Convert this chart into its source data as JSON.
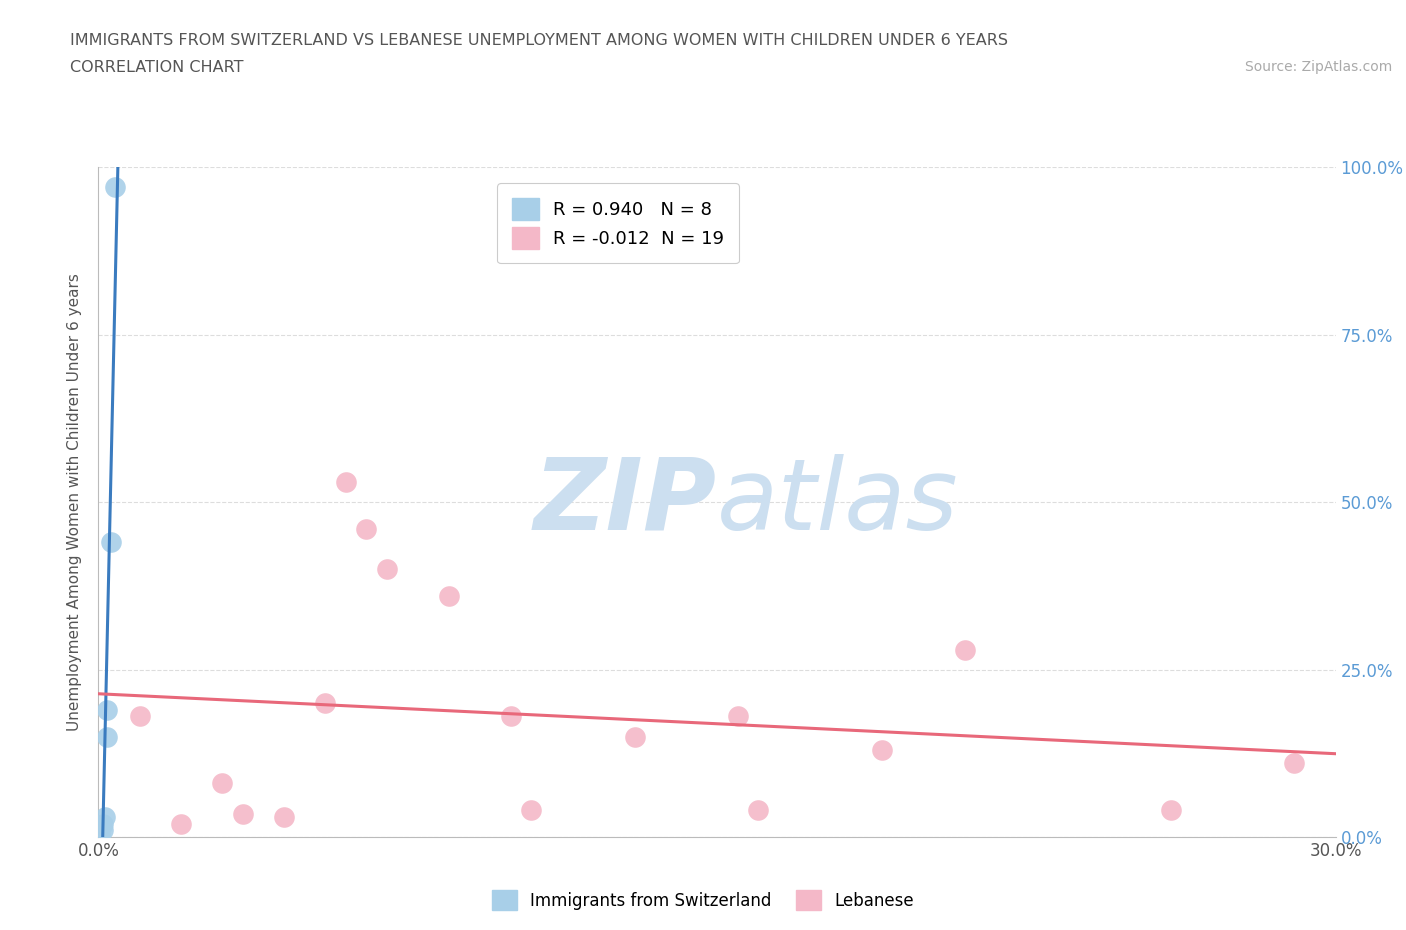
{
  "title_line1": "IMMIGRANTS FROM SWITZERLAND VS LEBANESE UNEMPLOYMENT AMONG WOMEN WITH CHILDREN UNDER 6 YEARS",
  "title_line2": "CORRELATION CHART",
  "source_text": "Source: ZipAtlas.com",
  "ylabel": "Unemployment Among Women with Children Under 6 years",
  "xlim": [
    0,
    0.3
  ],
  "ylim": [
    0,
    1.0
  ],
  "xtick_labels": [
    "0.0%",
    "",
    "",
    "",
    "",
    "",
    "30.0%"
  ],
  "xtick_vals": [
    0.0,
    0.05,
    0.1,
    0.15,
    0.2,
    0.25,
    0.3
  ],
  "ytick_labels": [
    "0.0%",
    "25.0%",
    "50.0%",
    "75.0%",
    "100.0%"
  ],
  "ytick_vals": [
    0.0,
    0.25,
    0.5,
    0.75,
    1.0
  ],
  "swiss_x": [
    0.0005,
    0.001,
    0.001,
    0.0015,
    0.002,
    0.002,
    0.003,
    0.004
  ],
  "swiss_y": [
    0.005,
    0.01,
    0.02,
    0.03,
    0.15,
    0.19,
    0.44,
    0.97
  ],
  "lebanese_x": [
    0.01,
    0.02,
    0.03,
    0.035,
    0.045,
    0.055,
    0.06,
    0.065,
    0.07,
    0.085,
    0.1,
    0.105,
    0.13,
    0.155,
    0.16,
    0.19,
    0.21,
    0.26,
    0.29
  ],
  "lebanese_y": [
    0.18,
    0.02,
    0.08,
    0.035,
    0.03,
    0.2,
    0.53,
    0.46,
    0.4,
    0.36,
    0.18,
    0.04,
    0.15,
    0.18,
    0.04,
    0.13,
    0.28,
    0.04,
    0.11
  ],
  "swiss_color": "#a8cfe8",
  "lebanese_color": "#f4b8c8",
  "swiss_line_color": "#3a7bbf",
  "lebanese_line_color": "#e8687a",
  "swiss_r": "0.940",
  "swiss_n": "8",
  "lebanese_r": "-0.012",
  "lebanese_n": "19",
  "background_color": "#ffffff",
  "watermark_color": "#ccdff0",
  "grid_color": "#dddddd",
  "title_color": "#555555",
  "right_tick_color": "#5b9bd5"
}
